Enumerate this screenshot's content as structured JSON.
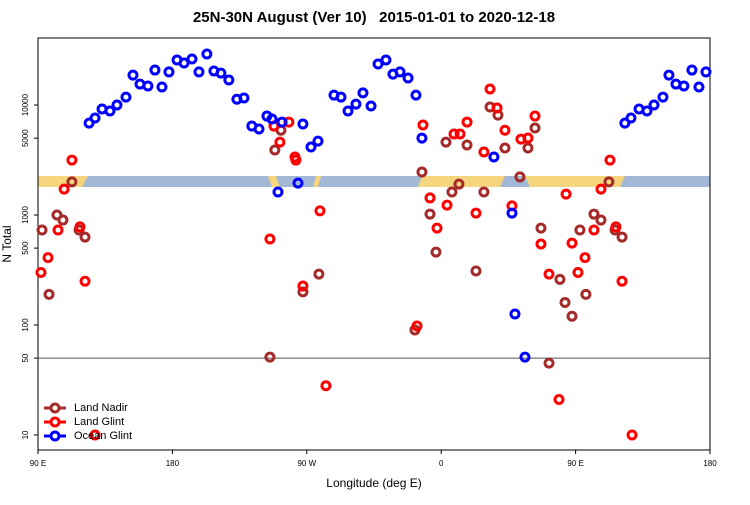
{
  "chart_data": {
    "type": "scatter",
    "title": "25N-30N August (Ver 10)   2015-01-01 to 2020-12-18",
    "xlabel": "Longitude (deg E)",
    "ylabel": "N Total",
    "xlim": [
      90,
      540
    ],
    "xticks": [
      {
        "value": 90,
        "label": "90 E"
      },
      180,
      {
        "value": 270,
        "label": "90 W"
      },
      {
        "value": 360,
        "label": "0"
      },
      {
        "value": 450,
        "label": "90 E"
      },
      {
        "value": 540,
        "label": "180"
      }
    ],
    "ylim": [
      7.3,
      40700
    ],
    "yscale": "log",
    "yticks": [
      10,
      50,
      100,
      500,
      1000,
      5000,
      10000
    ],
    "hlines": [
      50
    ],
    "legend": "lower left",
    "series": [
      {
        "name": "Land Nadir",
        "color": "#a52a2a",
        "x": [
          92.7,
          97.4,
          102.7,
          106.7,
          112.7,
          117.5,
          121.5,
          245.3,
          248.6,
          252.7,
          267.4,
          278.1,
          342.4,
          347.1,
          352.5,
          356.5,
          363.2,
          367.2,
          371.9,
          377.3,
          383.3,
          388.6,
          392.7,
          398,
          402.7,
          412.7,
          418.1,
          422.8,
          426.8,
          432.2,
          439.5,
          442.9,
          447.6,
          452.9,
          456.9,
          462.3,
          467,
          472.3,
          476.4,
          481.1
        ],
        "values": [
          730,
          190,
          1000,
          900,
          2000,
          730,
          630,
          51,
          3900,
          5900,
          200,
          290,
          90,
          2460,
          1020,
          460,
          4600,
          1620,
          1910,
          4330,
          310,
          1620,
          9600,
          8100,
          4070,
          2220,
          4070,
          6180,
          760,
          45,
          260,
          160,
          120,
          730,
          190,
          1020,
          900,
          2000,
          730,
          630
        ]
      },
      {
        "name": "Land Glint",
        "color": "#ff0000",
        "x": [
          92,
          96.7,
          103.4,
          107.5,
          112.7,
          118.1,
          121.5,
          128.2,
          245.3,
          248,
          252,
          258,
          262.1,
          262.7,
          267.4,
          278.8,
          282.8,
          343.8,
          347.8,
          352.5,
          357.2,
          363.9,
          368.6,
          372.6,
          377.3,
          383.3,
          388.6,
          392.7,
          397.4,
          402.7,
          407.4,
          413.4,
          418.1,
          422.8,
          426.8,
          432.2,
          438.9,
          443.6,
          447.6,
          451.6,
          456.3,
          462.3,
          467,
          473,
          477,
          481.1,
          487.8
        ],
        "values": [
          300,
          410,
          730,
          1720,
          3160,
          780,
          250,
          10,
          605,
          6440,
          4600,
          7000,
          3370,
          3160,
          226,
          1090,
          28,
          98,
          6580,
          1430,
          760,
          1230,
          5450,
          5450,
          7000,
          1040,
          3740,
          14000,
          9390,
          5900,
          1210,
          4900,
          5010,
          7940,
          545,
          290,
          21,
          1550,
          555,
          300,
          410,
          730,
          1720,
          3160,
          780,
          250,
          10
        ]
      },
      {
        "name": "Ocean Glint",
        "color": "#0000ff",
        "x": [
          124.2,
          128.2,
          132.9,
          138.2,
          142.9,
          148.9,
          153.6,
          158.3,
          163.6,
          168.3,
          173,
          177.7,
          183.1,
          187.8,
          193.1,
          197.8,
          203.1,
          207.8,
          212.5,
          217.8,
          223.2,
          227.9,
          233.2,
          238,
          243.3,
          246.7,
          250.7,
          253.4,
          264.1,
          267.4,
          272.8,
          277.5,
          288.2,
          292.9,
          297.6,
          302.9,
          307.6,
          313,
          317.7,
          323,
          327.7,
          332.4,
          337.8,
          343.1,
          347.1,
          395.3,
          407.4,
          409.4,
          416.1,
          483,
          487.1,
          492.5,
          497.8,
          502.5,
          508.5,
          512.5,
          517.2,
          522.5,
          527.9,
          532.6,
          537.3
        ],
        "values": [
          6850,
          7620,
          9200,
          8820,
          10000,
          11800,
          18700,
          15500,
          14900,
          20800,
          14600,
          20000,
          25700,
          24100,
          26200,
          20000,
          29100,
          20400,
          19500,
          16900,
          11300,
          11600,
          6440,
          6050,
          7940,
          7460,
          1620,
          7000,
          1950,
          6720,
          4150,
          4700,
          12300,
          11800,
          8820,
          10200,
          12900,
          9800,
          23600,
          25700,
          19100,
          20000,
          17600,
          12300,
          5000,
          3370,
          1040,
          126,
          51,
          6850,
          7620,
          9200,
          8820,
          10000,
          11800,
          18700,
          15500,
          14900,
          20800,
          14600,
          20000
        ]
      }
    ]
  }
}
